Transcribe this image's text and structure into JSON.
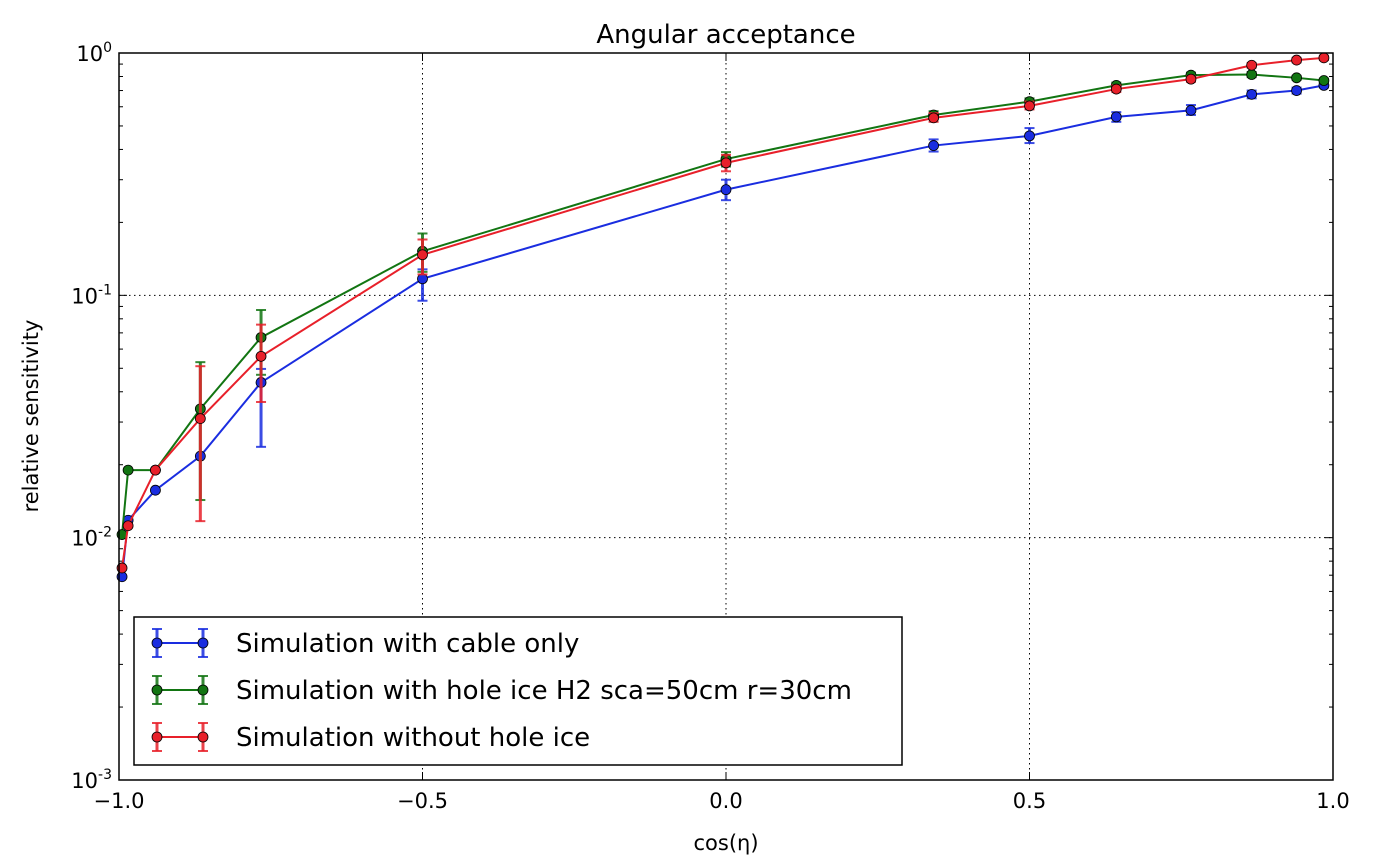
{
  "chart_data": {
    "type": "line",
    "title": "Angular acceptance",
    "xlabel": "cos(η)",
    "ylabel": "relative sensitivity",
    "xlim": [
      -1.0,
      1.0
    ],
    "ylim": [
      0.001,
      1.0
    ],
    "yscale": "log",
    "grid": true,
    "legend_position": "bottom-left",
    "x_ticks": [
      {
        "value": -1.0,
        "label": "−1.0"
      },
      {
        "value": -0.5,
        "label": "−0.5"
      },
      {
        "value": 0.0,
        "label": "0.0"
      },
      {
        "value": 0.5,
        "label": "0.5"
      },
      {
        "value": 1.0,
        "label": "1.0"
      }
    ],
    "y_ticks": [
      {
        "value": 1.0,
        "base": "10",
        "exp": "0"
      },
      {
        "value": 0.1,
        "base": "10",
        "exp": "-1"
      },
      {
        "value": 0.01,
        "base": "10",
        "exp": "-2"
      },
      {
        "value": 0.001,
        "base": "10",
        "exp": "-3"
      }
    ],
    "series": [
      {
        "name": "Simulation with cable only",
        "color": "#1a2de0",
        "points": [
          {
            "x": -0.995,
            "y": 0.0069,
            "lo": 0.0069,
            "hi": 0.0069
          },
          {
            "x": -0.985,
            "y": 0.0118,
            "lo": 0.0118,
            "hi": 0.0118
          },
          {
            "x": -0.94,
            "y": 0.0157,
            "lo": 0.0157,
            "hi": 0.0157
          },
          {
            "x": -0.866,
            "y": 0.0217,
            "lo": 0.0217,
            "hi": 0.0217
          },
          {
            "x": -0.766,
            "y": 0.0437,
            "lo": 0.0237,
            "hi": 0.0497
          },
          {
            "x": -0.5,
            "y": 0.117,
            "lo": 0.095,
            "hi": 0.128
          },
          {
            "x": 0.0,
            "y": 0.273,
            "lo": 0.247,
            "hi": 0.3
          },
          {
            "x": 0.342,
            "y": 0.415,
            "lo": 0.392,
            "hi": 0.44
          },
          {
            "x": 0.5,
            "y": 0.455,
            "lo": 0.425,
            "hi": 0.49
          },
          {
            "x": 0.643,
            "y": 0.545,
            "lo": 0.52,
            "hi": 0.57
          },
          {
            "x": 0.766,
            "y": 0.58,
            "lo": 0.555,
            "hi": 0.61
          },
          {
            "x": 0.866,
            "y": 0.675,
            "lo": 0.65,
            "hi": 0.7
          },
          {
            "x": 0.94,
            "y": 0.7,
            "lo": 0.68,
            "hi": 0.72
          },
          {
            "x": 0.985,
            "y": 0.735,
            "lo": 0.72,
            "hi": 0.75
          }
        ]
      },
      {
        "name": "Simulation with hole ice H2 sca=50cm r=30cm",
        "color": "#127512",
        "points": [
          {
            "x": -0.995,
            "y": 0.0103,
            "lo": 0.0103,
            "hi": 0.0103
          },
          {
            "x": -0.985,
            "y": 0.019,
            "lo": 0.019,
            "hi": 0.019
          },
          {
            "x": -0.94,
            "y": 0.019,
            "lo": 0.019,
            "hi": 0.019
          },
          {
            "x": -0.866,
            "y": 0.034,
            "lo": 0.0143,
            "hi": 0.053
          },
          {
            "x": -0.766,
            "y": 0.067,
            "lo": 0.047,
            "hi": 0.087
          },
          {
            "x": -0.5,
            "y": 0.152,
            "lo": 0.125,
            "hi": 0.18
          },
          {
            "x": 0.0,
            "y": 0.365,
            "lo": 0.34,
            "hi": 0.39
          },
          {
            "x": 0.342,
            "y": 0.555,
            "lo": 0.535,
            "hi": 0.575
          },
          {
            "x": 0.5,
            "y": 0.63,
            "lo": 0.61,
            "hi": 0.65
          },
          {
            "x": 0.643,
            "y": 0.735,
            "lo": 0.715,
            "hi": 0.755
          },
          {
            "x": 0.766,
            "y": 0.81,
            "lo": 0.79,
            "hi": 0.83
          },
          {
            "x": 0.866,
            "y": 0.815,
            "lo": 0.795,
            "hi": 0.835
          },
          {
            "x": 0.94,
            "y": 0.79,
            "lo": 0.775,
            "hi": 0.805
          },
          {
            "x": 0.985,
            "y": 0.77,
            "lo": 0.755,
            "hi": 0.785
          }
        ]
      },
      {
        "name": "Simulation without hole ice",
        "color": "#e8202a",
        "points": [
          {
            "x": -0.995,
            "y": 0.0075,
            "lo": 0.0075,
            "hi": 0.0075
          },
          {
            "x": -0.985,
            "y": 0.0112,
            "lo": 0.0112,
            "hi": 0.0112
          },
          {
            "x": -0.94,
            "y": 0.019,
            "lo": 0.019,
            "hi": 0.019
          },
          {
            "x": -0.866,
            "y": 0.031,
            "lo": 0.0117,
            "hi": 0.051
          },
          {
            "x": -0.766,
            "y": 0.056,
            "lo": 0.0363,
            "hi": 0.0757
          },
          {
            "x": -0.5,
            "y": 0.147,
            "lo": 0.122,
            "hi": 0.17
          },
          {
            "x": 0.0,
            "y": 0.352,
            "lo": 0.325,
            "hi": 0.38
          },
          {
            "x": 0.342,
            "y": 0.54,
            "lo": 0.52,
            "hi": 0.565
          },
          {
            "x": 0.5,
            "y": 0.605,
            "lo": 0.585,
            "hi": 0.63
          },
          {
            "x": 0.643,
            "y": 0.71,
            "lo": 0.69,
            "hi": 0.735
          },
          {
            "x": 0.766,
            "y": 0.78,
            "lo": 0.76,
            "hi": 0.8
          },
          {
            "x": 0.866,
            "y": 0.89,
            "lo": 0.87,
            "hi": 0.91
          },
          {
            "x": 0.94,
            "y": 0.935,
            "lo": 0.915,
            "hi": 0.955
          },
          {
            "x": 0.985,
            "y": 0.955,
            "lo": 0.935,
            "hi": 0.975
          }
        ]
      }
    ]
  }
}
